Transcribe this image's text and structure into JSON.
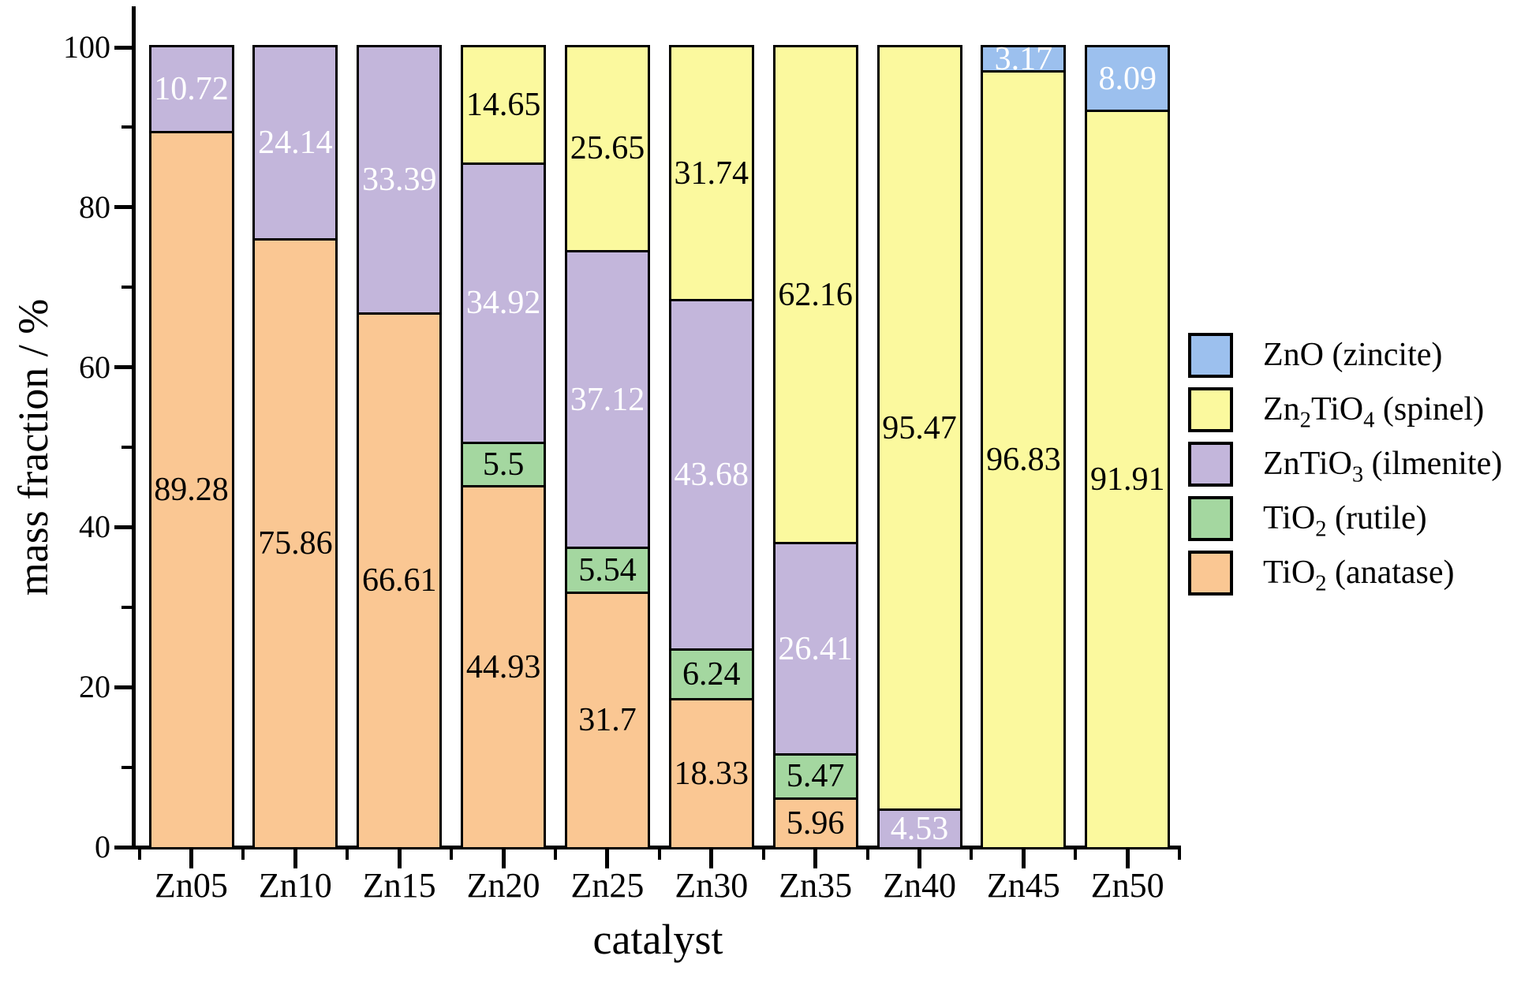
{
  "chart_data": {
    "type": "bar",
    "stacked": true,
    "title": "",
    "xlabel": "catalyst",
    "ylabel": "mass fraction / %",
    "ylim": [
      0,
      100
    ],
    "yticks": [
      0,
      20,
      40,
      60,
      80,
      100
    ],
    "y_minor_ticks": [
      10,
      30,
      50,
      70,
      90
    ],
    "grid": false,
    "legend_position": "right-outside",
    "categories": [
      "Zn05",
      "Zn10",
      "Zn15",
      "Zn20",
      "Zn25",
      "Zn30",
      "Zn35",
      "Zn40",
      "Zn45",
      "Zn50"
    ],
    "stack_order_bottom_to_top": [
      "anatase",
      "rutile",
      "ilmenite",
      "spinel",
      "zincite"
    ],
    "series": [
      {
        "key": "anatase",
        "name": "TiO2 (anatase)",
        "color": "#FAC793",
        "label_color": "#000000",
        "values": [
          89.28,
          75.86,
          66.61,
          44.93,
          31.7,
          18.33,
          5.96,
          null,
          null,
          null
        ]
      },
      {
        "key": "rutile",
        "name": "TiO2 (rutile)",
        "color": "#A4D7A0",
        "label_color": "#000000",
        "values": [
          null,
          null,
          null,
          5.5,
          5.54,
          6.24,
          5.47,
          null,
          null,
          null
        ]
      },
      {
        "key": "ilmenite",
        "name": "ZnTiO3 (ilmenite)",
        "color": "#C3B6DB",
        "label_color": "#FFFFFF",
        "values": [
          10.72,
          24.14,
          33.39,
          34.92,
          37.12,
          43.68,
          26.41,
          4.53,
          null,
          null
        ]
      },
      {
        "key": "spinel",
        "name": "Zn2TiO4 (spinel)",
        "color": "#FBF99E",
        "label_color": "#000000",
        "values": [
          null,
          null,
          null,
          14.65,
          25.65,
          31.74,
          62.16,
          95.47,
          96.83,
          91.91
        ]
      },
      {
        "key": "zincite",
        "name": "ZnO (zincite)",
        "color": "#9CC0EE",
        "label_color": "#FFFFFF",
        "values": [
          null,
          null,
          null,
          null,
          null,
          null,
          null,
          null,
          3.17,
          8.09
        ]
      }
    ]
  },
  "axes": {
    "xlabel": "catalyst",
    "ylabel": "mass fraction / %",
    "ytick_labels": [
      "0",
      "20",
      "40",
      "60",
      "80",
      "100"
    ]
  },
  "legend": {
    "entries": [
      {
        "key": "zincite",
        "color": "#9CC0EE",
        "parts": [
          {
            "t": "ZnO (zincite)"
          }
        ]
      },
      {
        "key": "spinel",
        "color": "#FBF99E",
        "parts": [
          {
            "t": "Zn"
          },
          {
            "t": "2",
            "sub": true
          },
          {
            "t": "TiO"
          },
          {
            "t": "4",
            "sub": true
          },
          {
            "t": " (spinel)"
          }
        ]
      },
      {
        "key": "ilmenite",
        "color": "#C3B6DB",
        "parts": [
          {
            "t": "ZnTiO"
          },
          {
            "t": "3",
            "sub": true
          },
          {
            "t": " (ilmenite)"
          }
        ]
      },
      {
        "key": "rutile",
        "color": "#A4D7A0",
        "parts": [
          {
            "t": "TiO"
          },
          {
            "t": "2",
            "sub": true
          },
          {
            "t": " (rutile)"
          }
        ]
      },
      {
        "key": "anatase",
        "color": "#FAC793",
        "parts": [
          {
            "t": "TiO"
          },
          {
            "t": "2",
            "sub": true
          },
          {
            "t": " (anatase)"
          }
        ]
      }
    ]
  },
  "colors": {
    "axis": "#000000",
    "bar_border": "#000000",
    "background": "#FFFFFF"
  }
}
